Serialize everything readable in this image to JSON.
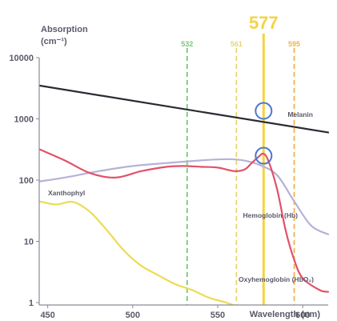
{
  "chart_data": {
    "type": "line",
    "y_scale": "log",
    "xlim": [
      445,
      615
    ],
    "ylim": [
      1,
      10000
    ],
    "grid": false,
    "ylabel": "Absorption",
    "ylabel_unit": "(cm⁻¹)",
    "xlabel": "Wavelength (nm)",
    "x_ticks": [
      "450",
      "500",
      "550",
      "600"
    ],
    "y_ticks": [
      "10000",
      "1000",
      "100",
      "10",
      "1"
    ],
    "reference_lines": [
      {
        "label": "532",
        "x": 532,
        "color": "#7cc47a",
        "style": "dashed"
      },
      {
        "label": "561",
        "x": 561,
        "color": "#e8d66a",
        "style": "dashed"
      },
      {
        "label": "577",
        "x": 577,
        "color": "#f5d342",
        "style": "solid"
      },
      {
        "label": "595",
        "x": 595,
        "color": "#f2b04a",
        "style": "dashed"
      }
    ],
    "markers": [
      {
        "x": 577,
        "y": 1350,
        "shape": "circle",
        "color": "#4a78d0"
      },
      {
        "x": 577,
        "y": 250,
        "shape": "circle",
        "color": "#4a78d0"
      }
    ],
    "series": [
      {
        "name": "Melanin",
        "color": "#2a2a33",
        "x": [
          445,
          615
        ],
        "y": [
          3500,
          600
        ]
      },
      {
        "name": "Hemoglobin (Hb)",
        "color": "#b5b2d9",
        "x": [
          445,
          460,
          480,
          500,
          520,
          540,
          555,
          565,
          575,
          585,
          595,
          605,
          615
        ],
        "y": [
          95,
          110,
          140,
          170,
          190,
          210,
          220,
          210,
          175,
          120,
          45,
          18,
          13
        ]
      },
      {
        "name": "Oxyhemoglobin (HbO₂)",
        "color": "#e2506a",
        "x": [
          445,
          460,
          475,
          490,
          505,
          520,
          530,
          540,
          550,
          560,
          566,
          570,
          574,
          577,
          580,
          585,
          590,
          595,
          600,
          610,
          615
        ],
        "y": [
          320,
          210,
          130,
          110,
          140,
          165,
          170,
          165,
          160,
          140,
          150,
          190,
          240,
          270,
          200,
          70,
          15,
          5,
          2.5,
          1.6,
          1.5
        ]
      },
      {
        "name": "Xanthophyl",
        "color": "#eddb55",
        "x": [
          445,
          455,
          465,
          475,
          485,
          495,
          505,
          515,
          525,
          535,
          545,
          555,
          565
        ],
        "y": [
          45,
          40,
          44,
          30,
          15,
          7,
          4,
          2.8,
          2.0,
          1.6,
          1.2,
          1.0,
          0.8
        ]
      }
    ]
  }
}
